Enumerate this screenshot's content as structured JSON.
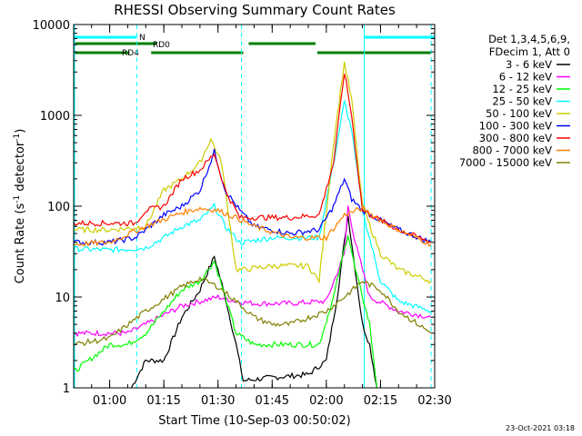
{
  "chart_data": {
    "type": "line",
    "title": "RHESSI Observing Summary Count Rates",
    "xlabel": "Start Time (10-Sep-03 00:50:02)",
    "ylabel_main": "Count Rate (s",
    "ylabel_sup1": "-1",
    "ylabel_mid": " detector",
    "ylabel_sup2": "-1",
    "ylabel_end": ")",
    "xlim": [
      "00:50:02",
      "02:30:00"
    ],
    "ylim": [
      1,
      10000
    ],
    "yscale": "log",
    "x_ticks": [
      "01:00",
      "01:15",
      "01:30",
      "01:45",
      "02:00",
      "02:15",
      "02:30"
    ],
    "y_ticks": [
      "1",
      "10",
      "100",
      "1000",
      "10000"
    ],
    "legend_header": [
      "Det 1,3,4,5,6,9,",
      "FDecim 1, Att 0"
    ],
    "legend_position": "right",
    "footer_date": "23-Oct-2021 03:18",
    "flag_labels": [
      "N",
      "RD0",
      "RD4"
    ],
    "flags": {
      "N": {
        "color": "#00ffff",
        "intervals": [
          [
            "00:50:02",
            "01:07:30"
          ],
          [
            "02:10:30",
            "02:30:00"
          ]
        ]
      },
      "RD0": {
        "color": "#007f00",
        "intervals": [
          [
            "00:50:02",
            "01:13:00"
          ],
          [
            "01:38:30",
            "01:57:00"
          ]
        ]
      },
      "RD4": {
        "color": "#007f00",
        "intervals": [
          [
            "00:50:02",
            "01:05:30"
          ],
          [
            "01:11:30",
            "01:37:00"
          ],
          [
            "01:57:30",
            "02:29:00"
          ]
        ]
      }
    },
    "night_boundaries": [
      "01:07:30",
      "01:36:30",
      "02:10:30",
      "02:29:00"
    ],
    "series": [
      {
        "name": "3 - 6 keV",
        "color": "#000000",
        "points": [
          [
            "01:06",
            1
          ],
          [
            "01:10",
            2
          ],
          [
            "01:15",
            2
          ],
          [
            "01:20",
            6
          ],
          [
            "01:25",
            12
          ],
          [
            "01:29",
            28
          ],
          [
            "01:32",
            10
          ],
          [
            "01:35",
            3
          ],
          [
            "01:37",
            1.2
          ],
          [
            "01:45",
            1.3
          ],
          [
            "01:55",
            1.4
          ],
          [
            "02:00",
            2
          ],
          [
            "02:03",
            10
          ],
          [
            "02:06",
            80
          ],
          [
            "02:08",
            20
          ],
          [
            "02:10",
            5
          ],
          [
            "02:12",
            3
          ],
          [
            "02:14",
            1
          ]
        ]
      },
      {
        "name": "6 - 12 keV",
        "color": "#ff00ff",
        "points": [
          [
            "00:50:02",
            4
          ],
          [
            "01:05",
            4
          ],
          [
            "01:10",
            5
          ],
          [
            "01:20",
            8
          ],
          [
            "01:30",
            10
          ],
          [
            "01:35",
            9
          ],
          [
            "01:40",
            8.5
          ],
          [
            "01:50",
            8.5
          ],
          [
            "02:00",
            9
          ],
          [
            "02:05",
            30
          ],
          [
            "02:06",
            100
          ],
          [
            "02:08",
            40
          ],
          [
            "02:12",
            10
          ],
          [
            "02:20",
            7
          ],
          [
            "02:29",
            6
          ]
        ]
      },
      {
        "name": "12 - 25 keV",
        "color": "#00ff00",
        "points": [
          [
            "00:50:02",
            1.5
          ],
          [
            "01:00",
            3
          ],
          [
            "01:05",
            3
          ],
          [
            "01:10",
            4
          ],
          [
            "01:20",
            12
          ],
          [
            "01:25",
            15
          ],
          [
            "01:29",
            25
          ],
          [
            "01:32",
            10
          ],
          [
            "01:35",
            4
          ],
          [
            "01:40",
            3
          ],
          [
            "01:50",
            3
          ],
          [
            "01:58",
            3
          ],
          [
            "02:02",
            10
          ],
          [
            "02:06",
            50
          ],
          [
            "02:08",
            20
          ],
          [
            "02:12",
            5
          ],
          [
            "02:14",
            1
          ]
        ]
      },
      {
        "name": "25 - 50 keV",
        "color": "#00ffff",
        "points": [
          [
            "00:50:02",
            34
          ],
          [
            "01:00",
            33
          ],
          [
            "01:07",
            34
          ],
          [
            "01:10",
            35
          ],
          [
            "01:15",
            45
          ],
          [
            "01:20",
            60
          ],
          [
            "01:25",
            70
          ],
          [
            "01:29",
            100
          ],
          [
            "01:32",
            60
          ],
          [
            "01:36",
            40
          ],
          [
            "01:37",
            40
          ],
          [
            "01:45",
            45
          ],
          [
            "01:55",
            45
          ],
          [
            "01:58",
            45
          ],
          [
            "02:02",
            300
          ],
          [
            "02:05",
            1400
          ],
          [
            "02:07",
            700
          ],
          [
            "02:10",
            90
          ],
          [
            "02:15",
            15
          ],
          [
            "02:20",
            9
          ],
          [
            "02:29",
            7
          ]
        ]
      },
      {
        "name": "50 - 100 keV",
        "color": "#cccc00",
        "points": [
          [
            "00:50:02",
            55
          ],
          [
            "01:00",
            55
          ],
          [
            "01:07",
            58
          ],
          [
            "01:10",
            60
          ],
          [
            "01:15",
            150
          ],
          [
            "01:20",
            200
          ],
          [
            "01:25",
            300
          ],
          [
            "01:28",
            550
          ],
          [
            "01:31",
            300
          ],
          [
            "01:35",
            20
          ],
          [
            "01:37",
            20
          ],
          [
            "01:45",
            22
          ],
          [
            "01:55",
            22
          ],
          [
            "01:58",
            15
          ],
          [
            "02:02",
            500
          ],
          [
            "02:05",
            3800
          ],
          [
            "02:07",
            1500
          ],
          [
            "02:10",
            100
          ],
          [
            "02:15",
            30
          ],
          [
            "02:20",
            20
          ],
          [
            "02:29",
            15
          ]
        ]
      },
      {
        "name": "100 - 300 keV",
        "color": "#0000ff",
        "points": [
          [
            "00:50:02",
            40
          ],
          [
            "01:00",
            40
          ],
          [
            "01:07",
            45
          ],
          [
            "01:10",
            55
          ],
          [
            "01:15",
            80
          ],
          [
            "01:20",
            100
          ],
          [
            "01:25",
            150
          ],
          [
            "01:29",
            400
          ],
          [
            "01:32",
            150
          ],
          [
            "01:36",
            90
          ],
          [
            "01:40",
            60
          ],
          [
            "01:50",
            50
          ],
          [
            "01:58",
            55
          ],
          [
            "02:02",
            100
          ],
          [
            "02:05",
            200
          ],
          [
            "02:07",
            120
          ],
          [
            "02:10",
            90
          ],
          [
            "02:15",
            70
          ],
          [
            "02:20",
            55
          ],
          [
            "02:29",
            40
          ]
        ]
      },
      {
        "name": "300 - 800 keV",
        "color": "#ff0000",
        "points": [
          [
            "00:50:02",
            65
          ],
          [
            "01:00",
            65
          ],
          [
            "01:07",
            65
          ],
          [
            "01:10",
            90
          ],
          [
            "01:15",
            100
          ],
          [
            "01:20",
            200
          ],
          [
            "01:25",
            250
          ],
          [
            "01:29",
            380
          ],
          [
            "01:32",
            150
          ],
          [
            "01:36",
            75
          ],
          [
            "01:40",
            75
          ],
          [
            "01:50",
            75
          ],
          [
            "01:58",
            80
          ],
          [
            "02:02",
            300
          ],
          [
            "02:05",
            3000
          ],
          [
            "02:07",
            1000
          ],
          [
            "02:10",
            90
          ],
          [
            "02:15",
            70
          ],
          [
            "02:20",
            55
          ],
          [
            "02:29",
            40
          ]
        ]
      },
      {
        "name": "800 - 7000 keV",
        "color": "#ff7f00",
        "points": [
          [
            "00:50:02",
            38
          ],
          [
            "01:00",
            40
          ],
          [
            "01:10",
            60
          ],
          [
            "01:20",
            85
          ],
          [
            "01:25",
            95
          ],
          [
            "01:30",
            90
          ],
          [
            "01:35",
            75
          ],
          [
            "01:40",
            60
          ],
          [
            "01:50",
            45
          ],
          [
            "02:00",
            45
          ],
          [
            "02:05",
            80
          ],
          [
            "02:10",
            95
          ],
          [
            "02:15",
            70
          ],
          [
            "02:20",
            55
          ],
          [
            "02:29",
            38
          ]
        ]
      },
      {
        "name": "7000 - 15000 keV",
        "color": "#7f7f00",
        "points": [
          [
            "00:50:02",
            3
          ],
          [
            "01:00",
            3.5
          ],
          [
            "01:10",
            7
          ],
          [
            "01:20",
            13
          ],
          [
            "01:25",
            16
          ],
          [
            "01:30",
            13
          ],
          [
            "01:35",
            9
          ],
          [
            "01:40",
            6
          ],
          [
            "01:45",
            5
          ],
          [
            "01:50",
            5
          ],
          [
            "02:00",
            7
          ],
          [
            "02:05",
            10
          ],
          [
            "02:10",
            15
          ],
          [
            "02:15",
            12
          ],
          [
            "02:20",
            7
          ],
          [
            "02:29",
            4
          ]
        ]
      }
    ]
  }
}
